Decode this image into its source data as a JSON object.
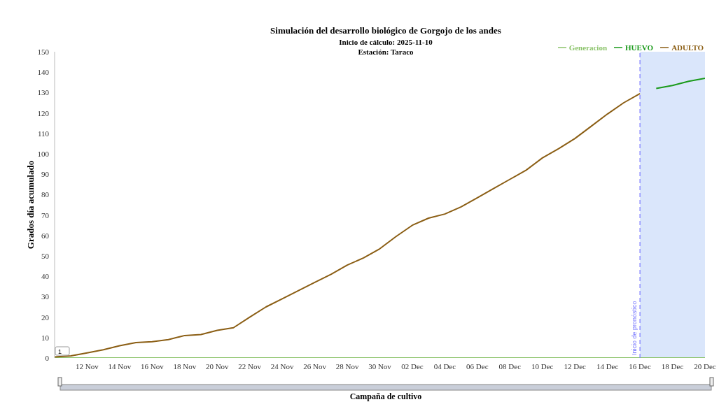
{
  "chart_data": {
    "type": "line",
    "title": "Simulación del desarrollo biológico de Gorgojo de los andes",
    "subtitle": "Inicio de cálculo: 2025-11-10\nEstación: Taraco",
    "xlabel": "Campaña de cultivo",
    "ylabel": "Grados día acumulado",
    "xlim": [
      "2025-11-10",
      "2025-12-20"
    ],
    "xticks": [
      {
        "value": "2025-11-12",
        "label": "12 Nov"
      },
      {
        "value": "2025-11-14",
        "label": "14 Nov"
      },
      {
        "value": "2025-11-16",
        "label": "16 Nov"
      },
      {
        "value": "2025-11-18",
        "label": "18 Nov"
      },
      {
        "value": "2025-11-20",
        "label": "20 Nov"
      },
      {
        "value": "2025-11-22",
        "label": "22 Nov"
      },
      {
        "value": "2025-11-24",
        "label": "24 Nov"
      },
      {
        "value": "2025-11-26",
        "label": "26 Nov"
      },
      {
        "value": "2025-11-28",
        "label": "28 Nov"
      },
      {
        "value": "2025-11-30",
        "label": "30 Nov"
      },
      {
        "value": "2025-12-02",
        "label": "02 Dec"
      },
      {
        "value": "2025-12-04",
        "label": "04 Dec"
      },
      {
        "value": "2025-12-06",
        "label": "06 Dec"
      },
      {
        "value": "2025-12-08",
        "label": "08 Dec"
      },
      {
        "value": "2025-12-10",
        "label": "10 Dec"
      },
      {
        "value": "2025-12-12",
        "label": "12 Dec"
      },
      {
        "value": "2025-12-14",
        "label": "14 Dec"
      },
      {
        "value": "2025-12-16",
        "label": "16 Dec"
      },
      {
        "value": "2025-12-18",
        "label": "18 Dec"
      },
      {
        "value": "2025-12-20",
        "label": "20 Dec"
      }
    ],
    "ylim": [
      0,
      150
    ],
    "yticks": [
      0,
      10,
      20,
      30,
      40,
      50,
      60,
      70,
      80,
      90,
      100,
      110,
      120,
      130,
      140,
      150
    ],
    "grid": false,
    "legend": "top right",
    "marker": "none",
    "line_style": "solid",
    "series": [
      {
        "name": "Generacion",
        "color": "#8bc36a",
        "x": [
          "2025-11-10",
          "2025-12-20"
        ],
        "values": [
          0,
          0
        ]
      },
      {
        "name": "HUEVO",
        "color": "#1a9a1a",
        "x": [
          "2025-12-17",
          "2025-12-18",
          "2025-12-19",
          "2025-12-20"
        ],
        "values": [
          132,
          133.5,
          135.5,
          137
        ]
      },
      {
        "name": "ADULTO",
        "color": "#8b5e14",
        "x": [
          "2025-11-10",
          "2025-11-11",
          "2025-11-12",
          "2025-11-13",
          "2025-11-14",
          "2025-11-15",
          "2025-11-16",
          "2025-11-17",
          "2025-11-18",
          "2025-11-19",
          "2025-11-20",
          "2025-11-21",
          "2025-11-22",
          "2025-11-23",
          "2025-11-24",
          "2025-11-25",
          "2025-11-26",
          "2025-11-27",
          "2025-11-28",
          "2025-11-29",
          "2025-11-30",
          "2025-12-01",
          "2025-12-02",
          "2025-12-03",
          "2025-12-04",
          "2025-12-05",
          "2025-12-06",
          "2025-12-07",
          "2025-12-08",
          "2025-12-09",
          "2025-12-10",
          "2025-12-11",
          "2025-12-12",
          "2025-12-13",
          "2025-12-14",
          "2025-12-15",
          "2025-12-16"
        ],
        "values": [
          0.5,
          1,
          2.5,
          4,
          6,
          7.5,
          8,
          9,
          11,
          11.5,
          13.5,
          14.8,
          20,
          25,
          29,
          33,
          37,
          41,
          45.5,
          49,
          53.5,
          59.5,
          65,
          68.5,
          70.5,
          74,
          78.5,
          83,
          87.5,
          92,
          98,
          102.5,
          107.5,
          113.5,
          119.5,
          125,
          129.5
        ]
      }
    ],
    "ref_lines": [
      {
        "axis": "x",
        "value": "2025-12-16",
        "label": "Inicio de pronóstico",
        "color": "#7b7bff",
        "line_style": "dashed"
      }
    ],
    "bands": [
      {
        "axis": "x",
        "from": "2025-12-16",
        "to": "2025-12-20",
        "color": "#dae6fb"
      }
    ],
    "annotations": [
      {
        "text": "1",
        "x": "2025-11-10",
        "y": 0
      }
    ]
  }
}
